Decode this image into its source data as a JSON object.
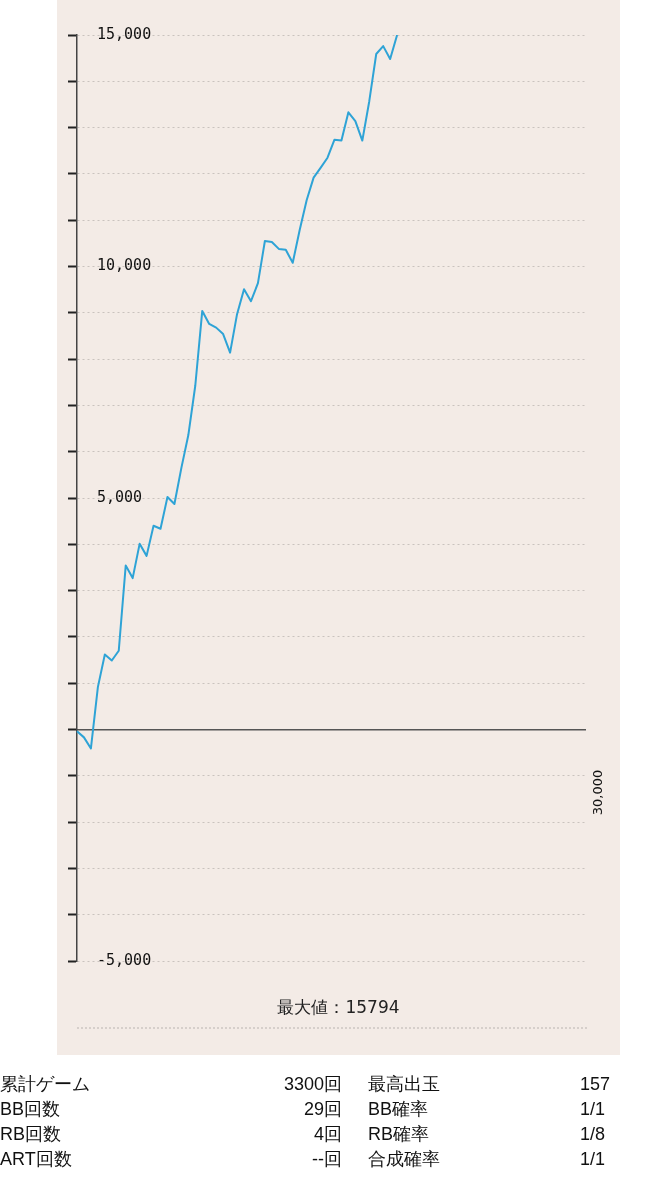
{
  "chart_data": {
    "type": "line",
    "categories": [
      null,
      null,
      null,
      null,
      null,
      null,
      null,
      null,
      null,
      null,
      null,
      null,
      null,
      null,
      null,
      null,
      null,
      null,
      null,
      null,
      null,
      null,
      null,
      null,
      null,
      null,
      null,
      null,
      null,
      null,
      null,
      null,
      null,
      null,
      null,
      null,
      null,
      null,
      null,
      null,
      null,
      null,
      null,
      null,
      null,
      null,
      null,
      null,
      null,
      null,
      null,
      null,
      null,
      null,
      null,
      null,
      null,
      null,
      null,
      null,
      null,
      null,
      null,
      null,
      null,
      null,
      null,
      null,
      null,
      null,
      null,
      null,
      null,
      null
    ],
    "series": [
      {
        "color": "#2ea3d6",
        "values": [
          -40,
          -170,
          -410,
          915,
          1620,
          1490,
          1700,
          3540,
          3270,
          4010,
          3750,
          4400,
          4335,
          5020,
          4870,
          5650,
          6360,
          7430,
          9040,
          8760,
          8680,
          8540,
          8140,
          8970,
          9510,
          9250,
          9640,
          10550,
          10530,
          10380,
          10360,
          10080,
          10790,
          11430,
          11920,
          12130,
          12350,
          12740,
          12720,
          13330,
          13140,
          12720,
          13570,
          14590,
          14760,
          14480,
          15000,
          null,
          null,
          null,
          null,
          null,
          null,
          null,
          null,
          null,
          null,
          null,
          null,
          null,
          null,
          null,
          null,
          null,
          null,
          null,
          null,
          null,
          null,
          null,
          null,
          null,
          null,
          null
        ]
      }
    ],
    "ylim": [
      -5000,
      15000
    ],
    "yticks": [
      {
        "value": -5000,
        "label": "-5,000"
      },
      {
        "value": -4000,
        "label": null
      },
      {
        "value": -3000,
        "label": null
      },
      {
        "value": -2000,
        "label": null
      },
      {
        "value": -1000,
        "label": null
      },
      {
        "value": 0,
        "label": null
      },
      {
        "value": 1000,
        "label": null
      },
      {
        "value": 2000,
        "label": null
      },
      {
        "value": 3000,
        "label": null
      },
      {
        "value": 4000,
        "label": null
      },
      {
        "value": 5000,
        "label": "5,000"
      },
      {
        "value": 6000,
        "label": null
      },
      {
        "value": 7000,
        "label": null
      },
      {
        "value": 8000,
        "label": null
      },
      {
        "value": 9000,
        "label": null
      },
      {
        "value": 10000,
        "label": "10,000"
      },
      {
        "value": 11000,
        "label": null
      },
      {
        "value": 12000,
        "label": null
      },
      {
        "value": 13000,
        "label": null
      },
      {
        "value": 14000,
        "label": null
      },
      {
        "value": 15000,
        "label": "15,000"
      }
    ],
    "grid": "y",
    "annotations": [
      "30,000",
      "最大値：15794",
      "累計ゲーム",
      "3300回",
      "最高出玉",
      "157",
      "BB回数",
      "29回",
      "BB確率",
      "1/1",
      "RB回数",
      "4回",
      "RB確率",
      "1/8",
      "ART回数",
      "--回",
      "合成確率",
      "1/1"
    ]
  }
}
